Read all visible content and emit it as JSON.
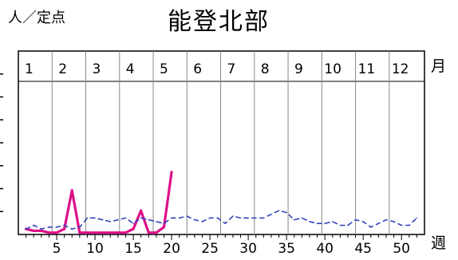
{
  "header": {
    "unit_label": "人／定点",
    "title": "能登北部"
  },
  "chart_data": {
    "type": "line",
    "title": "能登北部",
    "ylabel": "人／定点",
    "month_axis_label": "月",
    "week_axis_label": "週",
    "xlim": [
      0,
      53
    ],
    "ylim": [
      0,
      10
    ],
    "grid": "vertical month separators",
    "months": [
      {
        "label": "1",
        "start": 0,
        "end": 4.4
      },
      {
        "label": "2",
        "start": 4.4,
        "end": 8.8
      },
      {
        "label": "3",
        "start": 8.8,
        "end": 13.2
      },
      {
        "label": "4",
        "start": 13.2,
        "end": 17.6
      },
      {
        "label": "5",
        "start": 17.6,
        "end": 22.0
      },
      {
        "label": "6",
        "start": 22.0,
        "end": 26.4
      },
      {
        "label": "7",
        "start": 26.4,
        "end": 30.8
      },
      {
        "label": "8",
        "start": 30.8,
        "end": 35.2
      },
      {
        "label": "9",
        "start": 35.2,
        "end": 39.6
      },
      {
        "label": "10",
        "start": 39.6,
        "end": 44.0
      },
      {
        "label": "11",
        "start": 44.0,
        "end": 48.4
      },
      {
        "label": "12",
        "start": 48.4,
        "end": 53.0
      }
    ],
    "x_ticks": [
      5,
      10,
      15,
      20,
      25,
      30,
      35,
      40,
      45,
      50
    ],
    "series": [
      {
        "color": "#dd1188",
        "style": "solid",
        "x": [
          1,
          2,
          3,
          4,
          5,
          6,
          7,
          8,
          9,
          10,
          11,
          12,
          13,
          14,
          15,
          16,
          17,
          18,
          19,
          20
        ],
        "y": [
          0.3,
          0.2,
          0.2,
          0.1,
          0.1,
          0.3,
          2.4,
          0.1,
          0.1,
          0.1,
          0.1,
          0.1,
          0.1,
          0.1,
          0.3,
          1.3,
          0.1,
          0.1,
          0.4,
          3.4
        ]
      },
      {
        "color": "#3344bb",
        "style": "dashed",
        "x": [
          1,
          2,
          3,
          4,
          5,
          6,
          7,
          8,
          9,
          10,
          11,
          12,
          13,
          14,
          15,
          16,
          17,
          18,
          19,
          20,
          21,
          22,
          23,
          24,
          25,
          26,
          27,
          28,
          29,
          30,
          31,
          32,
          33,
          34,
          35,
          36,
          37,
          38,
          39,
          40,
          41,
          42,
          43,
          44,
          45,
          46,
          47,
          48,
          49,
          50,
          51,
          52
        ],
        "y": [
          0.3,
          0.5,
          0.3,
          0.4,
          0.4,
          0.5,
          0.3,
          0.4,
          0.9,
          0.9,
          0.8,
          0.7,
          0.8,
          0.9,
          0.6,
          0.9,
          0.8,
          0.7,
          0.6,
          0.9,
          0.9,
          1.0,
          0.8,
          0.7,
          0.9,
          0.9,
          0.6,
          1.0,
          0.9,
          0.9,
          0.9,
          0.9,
          1.1,
          1.3,
          1.2,
          0.8,
          0.9,
          0.7,
          0.6,
          0.6,
          0.7,
          0.5,
          0.5,
          0.8,
          0.7,
          0.4,
          0.6,
          0.8,
          0.7,
          0.5,
          0.5,
          0.9
        ]
      }
    ]
  }
}
